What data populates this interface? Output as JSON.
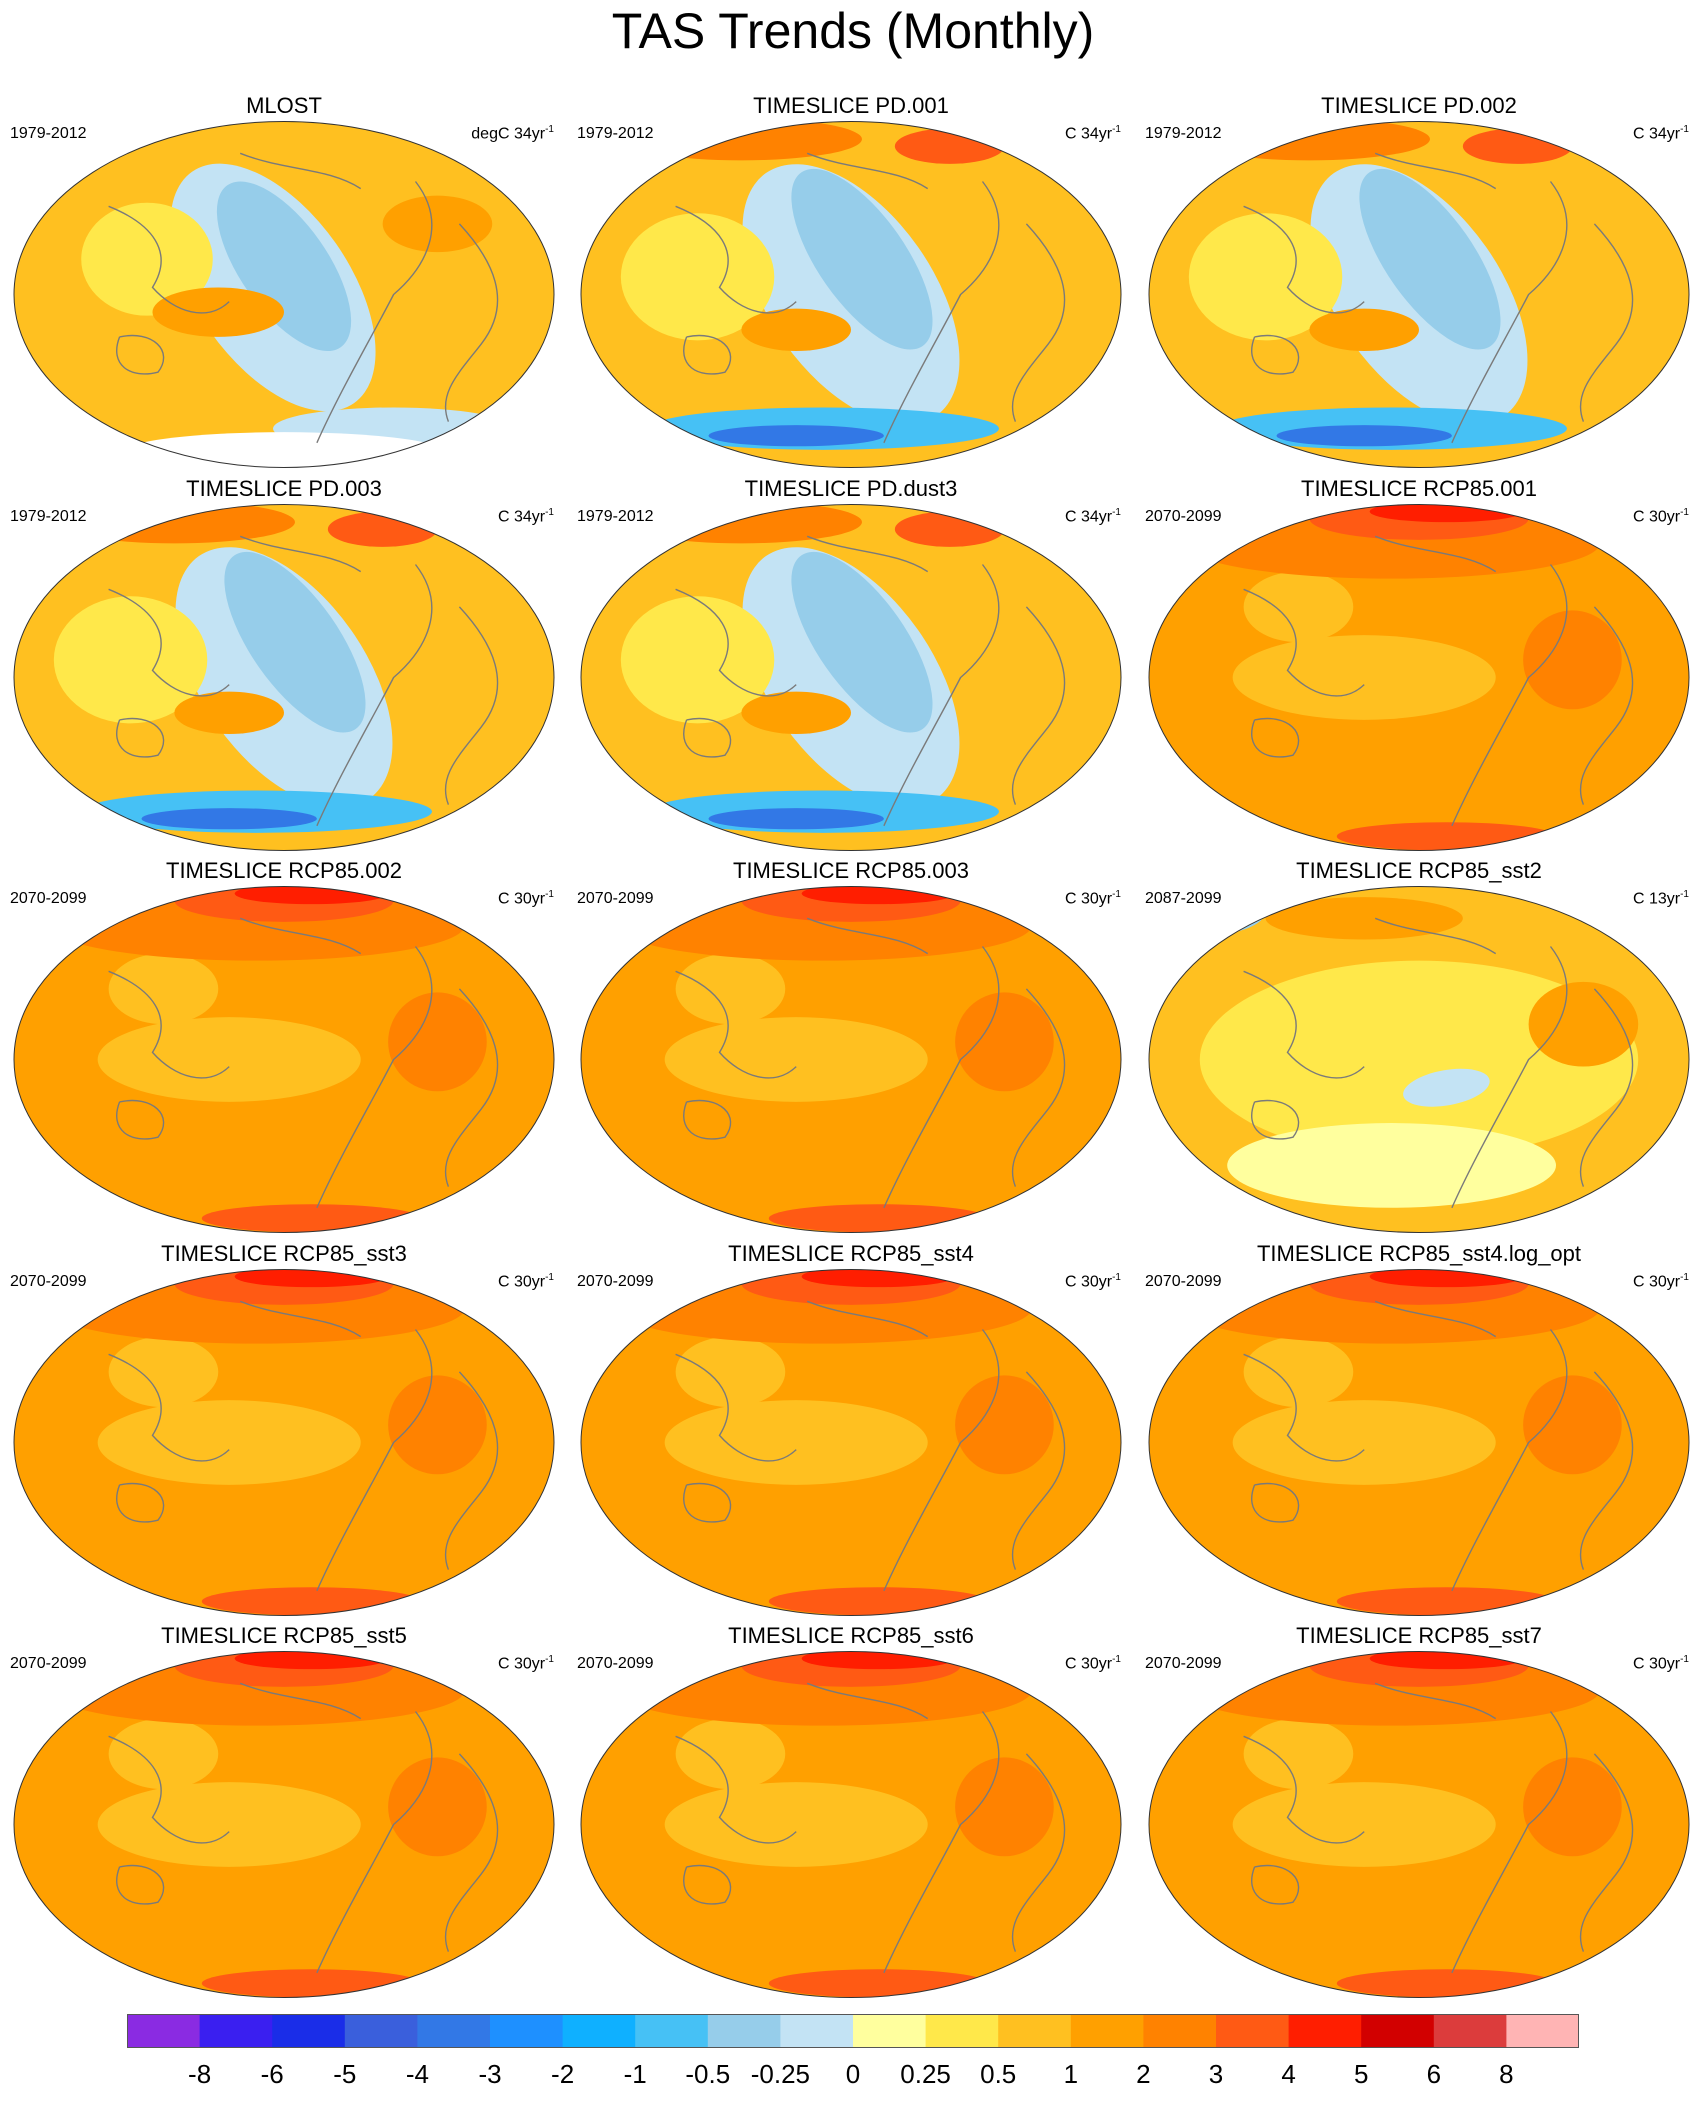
{
  "title": "TAS Trends (Monthly)",
  "panels": [
    {
      "title": "MLOST",
      "period": "1979-2012",
      "units": "degC 34yr",
      "units_sup": "-1",
      "pattern": "obs"
    },
    {
      "title": "TIMESLICE PD.001",
      "period": "1979-2012",
      "units": "C 34yr",
      "units_sup": "-1",
      "pattern": "pd"
    },
    {
      "title": "TIMESLICE PD.002",
      "period": "1979-2012",
      "units": "C 34yr",
      "units_sup": "-1",
      "pattern": "pd"
    },
    {
      "title": "TIMESLICE PD.003",
      "period": "1979-2012",
      "units": "C 34yr",
      "units_sup": "-1",
      "pattern": "pd"
    },
    {
      "title": "TIMESLICE PD.dust3",
      "period": "1979-2012",
      "units": "C 34yr",
      "units_sup": "-1",
      "pattern": "pd"
    },
    {
      "title": "TIMESLICE RCP85.001",
      "period": "2070-2099",
      "units": "C 30yr",
      "units_sup": "-1",
      "pattern": "rcp"
    },
    {
      "title": "TIMESLICE RCP85.002",
      "period": "2070-2099",
      "units": "C 30yr",
      "units_sup": "-1",
      "pattern": "rcp"
    },
    {
      "title": "TIMESLICE RCP85.003",
      "period": "2070-2099",
      "units": "C 30yr",
      "units_sup": "-1",
      "pattern": "rcp"
    },
    {
      "title": "TIMESLICE RCP85_sst2",
      "period": "2087-2099",
      "units": "C 13yr",
      "units_sup": "-1",
      "pattern": "sst2"
    },
    {
      "title": "TIMESLICE RCP85_sst3",
      "period": "2070-2099",
      "units": "C 30yr",
      "units_sup": "-1",
      "pattern": "rcp"
    },
    {
      "title": "TIMESLICE RCP85_sst4",
      "period": "2070-2099",
      "units": "C 30yr",
      "units_sup": "-1",
      "pattern": "rcp"
    },
    {
      "title": "TIMESLICE RCP85_sst4.log_opt",
      "period": "2070-2099",
      "units": "C 30yr",
      "units_sup": "-1",
      "pattern": "rcp"
    },
    {
      "title": "TIMESLICE RCP85_sst5",
      "period": "2070-2099",
      "units": "C 30yr",
      "units_sup": "-1",
      "pattern": "rcp"
    },
    {
      "title": "TIMESLICE RCP85_sst6",
      "period": "2070-2099",
      "units": "C 30yr",
      "units_sup": "-1",
      "pattern": "rcp"
    },
    {
      "title": "TIMESLICE RCP85_sst7",
      "period": "2070-2099",
      "units": "C 30yr",
      "units_sup": "-1",
      "pattern": "rcp"
    }
  ],
  "colorbar": {
    "colors": [
      "#8a2be2",
      "#3a1ff0",
      "#1a2de8",
      "#3a5fdc",
      "#3278e6",
      "#1e90ff",
      "#0fb0ff",
      "#46c1f5",
      "#96cdea",
      "#c3e3f4",
      "#ffff9e",
      "#ffe84a",
      "#ffc020",
      "#ffa000",
      "#ff8200",
      "#ff5a14",
      "#ff1e00",
      "#d20000",
      "#dc3c3c",
      "#ffb4b4"
    ],
    "labels": [
      "-8",
      "-6",
      "-5",
      "-4",
      "-3",
      "-2",
      "-1",
      "-0.5",
      "-0.25",
      "0",
      "0.25",
      "0.5",
      "1",
      "2",
      "3",
      "4",
      "5",
      "6",
      "8"
    ]
  }
}
